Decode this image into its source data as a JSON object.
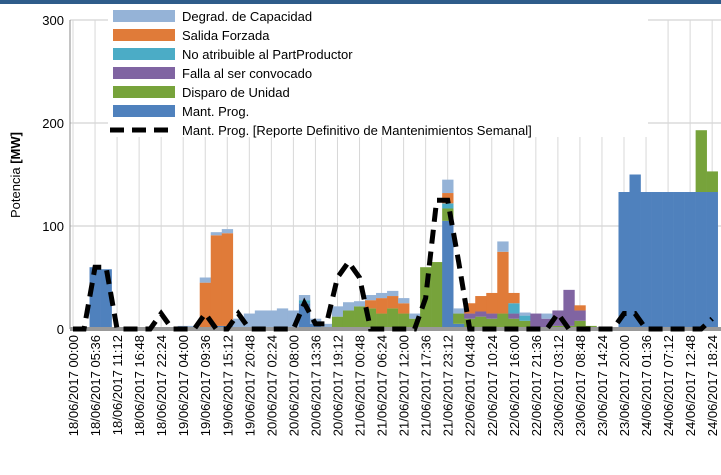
{
  "chart_data": {
    "type": "stacked_bar",
    "y_label": "Potencia",
    "y_label_unit": "[MW]",
    "categories": [
      "18/06/2017 00:00",
      null,
      "18/06/2017 05:36",
      null,
      "18/06/2017 11:12",
      null,
      "18/06/2017 16:48",
      null,
      "18/06/2017 22:24",
      null,
      "19/06/2017 04:00",
      null,
      "19/06/2017 09:36",
      null,
      "19/06/2017 15:12",
      null,
      "19/06/2017 20:48",
      null,
      "20/06/2017 02:24",
      null,
      "20/06/2017 08:00",
      null,
      "20/06/2017 13:36",
      null,
      "20/06/2017 19:12",
      null,
      "21/06/2017 00:48",
      null,
      "21/06/2017 06:24",
      null,
      "21/06/2017 12:00",
      null,
      "21/06/2017 17:36",
      null,
      "21/06/2017 23:12",
      null,
      "22/06/2017 04:48",
      null,
      "22/06/2017 10:24",
      null,
      "22/06/2017 16:00",
      null,
      "22/06/2017 21:36",
      null,
      "23/06/2017 03:12",
      null,
      "23/06/2017 08:48",
      null,
      "23/06/2017 14:24",
      null,
      "23/06/2017 20:00",
      null,
      "24/06/2017 01:36",
      null,
      "24/06/2017 07:12",
      null,
      "24/06/2017 12:48",
      null,
      "24/06/2017 18:24"
    ],
    "series": [
      {
        "name": "Degrad. de Capacidad",
        "color": "#95b3d7",
        "values": [
          0,
          0,
          0,
          0,
          0,
          0,
          0,
          0,
          0,
          0,
          3,
          3,
          5,
          3,
          4,
          10,
          15,
          18,
          18,
          20,
          18,
          5,
          5,
          5,
          10,
          8,
          5,
          5,
          5,
          5,
          5,
          5,
          0,
          0,
          13,
          5,
          0,
          0,
          0,
          10,
          0,
          3,
          0,
          5,
          0,
          0,
          0,
          0,
          0,
          0,
          0,
          0,
          0,
          0,
          0,
          0,
          0,
          0,
          0
        ]
      },
      {
        "name": "Salida Forzada",
        "color": "#e07b39",
        "values": [
          0,
          0,
          0,
          0,
          0,
          0,
          0,
          0,
          0,
          0,
          0,
          0,
          45,
          88,
          90,
          0,
          0,
          0,
          0,
          0,
          0,
          0,
          0,
          0,
          0,
          0,
          0,
          8,
          15,
          12,
          10,
          0,
          0,
          0,
          10,
          0,
          10,
          15,
          20,
          60,
          10,
          0,
          0,
          0,
          0,
          0,
          5,
          0,
          0,
          0,
          0,
          0,
          0,
          0,
          0,
          0,
          0,
          0,
          0
        ]
      },
      {
        "name": "No atribuible al PartProductor",
        "color": "#4bacc6",
        "values": [
          0,
          0,
          0,
          0,
          0,
          0,
          0,
          0,
          0,
          0,
          0,
          0,
          0,
          0,
          0,
          0,
          0,
          0,
          0,
          0,
          0,
          3,
          0,
          0,
          0,
          0,
          0,
          0,
          0,
          0,
          0,
          0,
          0,
          0,
          5,
          0,
          0,
          0,
          0,
          0,
          10,
          5,
          0,
          0,
          0,
          0,
          0,
          0,
          0,
          0,
          0,
          0,
          0,
          0,
          0,
          0,
          0,
          0,
          0
        ]
      },
      {
        "name": "Falla al ser convocado",
        "color": "#8064a2",
        "values": [
          0,
          0,
          0,
          0,
          0,
          0,
          0,
          0,
          0,
          0,
          0,
          0,
          0,
          0,
          0,
          0,
          0,
          0,
          0,
          0,
          0,
          0,
          0,
          0,
          0,
          0,
          0,
          0,
          0,
          0,
          0,
          0,
          0,
          0,
          0,
          0,
          5,
          5,
          5,
          0,
          5,
          0,
          15,
          10,
          15,
          35,
          10,
          0,
          0,
          0,
          0,
          0,
          0,
          0,
          0,
          0,
          0,
          0,
          0
        ]
      },
      {
        "name": "Disparo de Unidad",
        "color": "#77a33b",
        "values": [
          0,
          0,
          0,
          0,
          0,
          0,
          0,
          0,
          0,
          0,
          0,
          0,
          0,
          0,
          0,
          0,
          0,
          0,
          0,
          0,
          0,
          0,
          0,
          0,
          12,
          18,
          22,
          20,
          15,
          20,
          15,
          10,
          60,
          65,
          12,
          10,
          10,
          12,
          10,
          15,
          10,
          8,
          0,
          0,
          3,
          3,
          8,
          3,
          0,
          0,
          0,
          0,
          0,
          0,
          0,
          0,
          0,
          60,
          20
        ]
      },
      {
        "name": "Mant. Prog.",
        "color": "#4f81bd",
        "values": [
          0,
          0,
          60,
          58,
          0,
          0,
          0,
          0,
          0,
          0,
          0,
          0,
          0,
          3,
          3,
          0,
          0,
          0,
          0,
          0,
          0,
          25,
          5,
          0,
          0,
          0,
          0,
          0,
          0,
          0,
          0,
          0,
          0,
          0,
          105,
          5,
          0,
          0,
          0,
          0,
          0,
          0,
          0,
          0,
          0,
          0,
          0,
          0,
          0,
          0,
          133,
          150,
          133,
          133,
          133,
          133,
          133,
          133,
          133
        ]
      },
      {
        "name": "Mant. Prog. [Reporte Definitivo  de Mantenimientos Semanal]",
        "color": "#000000",
        "line": "dashed",
        "values": [
          0,
          0,
          60,
          60,
          0,
          0,
          0,
          0,
          15,
          0,
          0,
          0,
          15,
          0,
          0,
          15,
          0,
          0,
          0,
          0,
          0,
          25,
          5,
          5,
          50,
          65,
          50,
          0,
          0,
          0,
          0,
          0,
          30,
          125,
          125,
          65,
          0,
          0,
          0,
          0,
          0,
          0,
          0,
          0,
          15,
          0,
          0,
          0,
          0,
          0,
          15,
          15,
          0,
          0,
          0,
          0,
          0,
          0,
          10
        ]
      }
    ],
    "ylim": [
      0,
      300
    ],
    "yticks": [
      0,
      100,
      200,
      300
    ],
    "grid": true
  }
}
